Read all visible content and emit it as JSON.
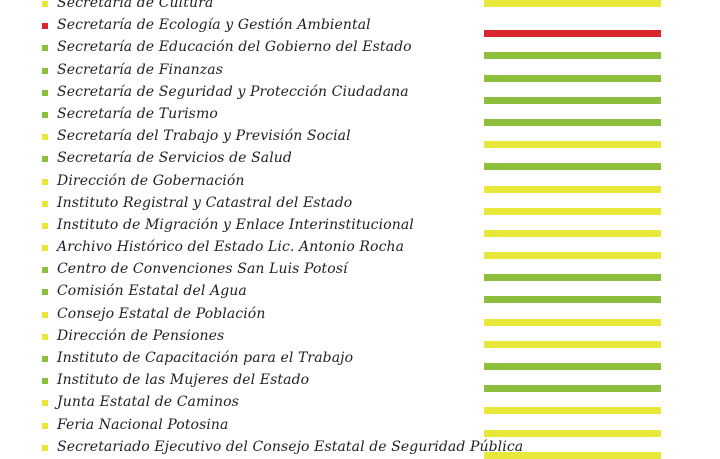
{
  "colors": {
    "red": "#d9262e",
    "green": "#8dbe3c",
    "yellow": "#e8e83a"
  },
  "items": [
    {
      "label": "Secretaría de Cultura",
      "status": "yellow",
      "partial": true
    },
    {
      "label": "Secretaría de Ecología y Gestión Ambiental",
      "status": "red"
    },
    {
      "label": "Secretaría de Educación del Gobierno del Estado",
      "status": "green"
    },
    {
      "label": "Secretaría de Finanzas",
      "status": "green"
    },
    {
      "label": "Secretaría de Seguridad y Protección Ciudadana",
      "status": "green"
    },
    {
      "label": "Secretaría de Turismo",
      "status": "green"
    },
    {
      "label": "Secretaría del Trabajo y Previsión Social",
      "status": "yellow"
    },
    {
      "label": "Secretaría de Servicios de Salud",
      "status": "green"
    },
    {
      "label": "Dirección de Gobernación",
      "status": "yellow"
    },
    {
      "label": "Instituto Registral y Catastral del Estado",
      "status": "yellow"
    },
    {
      "label": "Instituto de Migración y Enlace Interinstitucional",
      "status": "yellow"
    },
    {
      "label": "Archivo Histórico del Estado Lic. Antonio Rocha",
      "status": "yellow"
    },
    {
      "label": "Centro de Convenciones San Luis Potosí",
      "status": "green"
    },
    {
      "label": "Comisión Estatal del Agua",
      "status": "green"
    },
    {
      "label": "Consejo Estatal de Población",
      "status": "yellow"
    },
    {
      "label": "Dirección de Pensiones",
      "status": "yellow"
    },
    {
      "label": "Instituto de Capacitación para el Trabajo",
      "status": "green"
    },
    {
      "label": "Instituto de las Mujeres del Estado",
      "status": "green"
    },
    {
      "label": "Junta Estatal de Caminos",
      "status": "yellow"
    },
    {
      "label": "Feria Nacional Potosina",
      "status": "yellow"
    },
    {
      "label": "Secretariado Ejecutivo del Consejo Estatal de Seguridad Pública",
      "status": "yellow"
    }
  ]
}
